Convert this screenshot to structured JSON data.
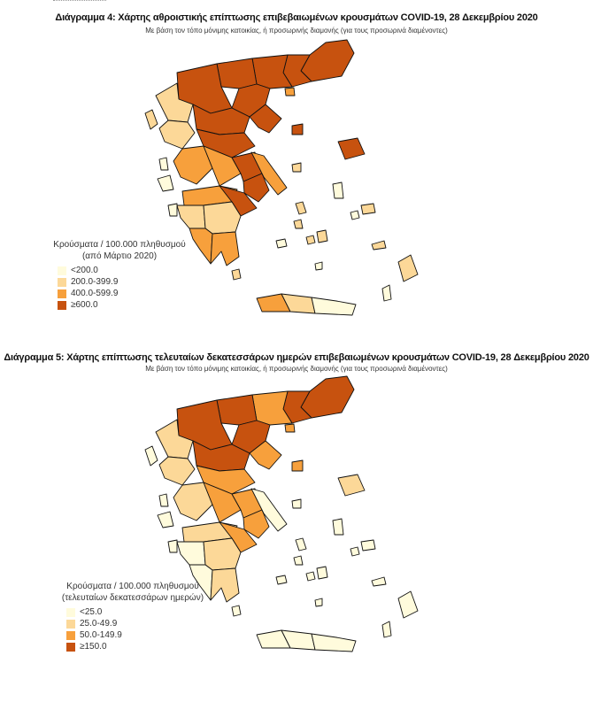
{
  "colors": [
    "#fffbdc",
    "#fcd898",
    "#f7a03c",
    "#c7520f"
  ],
  "map4": {
    "title": "Διάγραμμα 4: Χάρτης αθροιστικής επίπτωσης επιβεβαιωμένων κρουσμάτων COVID-19, 28 Δεκεμβρίου 2020",
    "subtitle": "Με βάση τον τόπο μόνιμης κατοικίας, ή προσωρινής διαμονής (για τους προσωρινά διαμένοντες)",
    "legend_title": "Κρούσματα / 100.000 πληθυσμού",
    "legend_subtitle": "(από Μάρτιο 2020)",
    "classes": [
      "<200.0",
      "200.0-399.9",
      "400.0-599.9",
      "≥600.0"
    ]
  },
  "map5": {
    "title": "Διάγραμμα 5: Χάρτης επίπτωσης τελευταίων δεκατεσσάρων ημερών επιβεβαιωμένων κρουσμάτων COVID-19, 28 Δεκεμβρίου 2020",
    "subtitle": "Με βάση τον τόπο μόνιμης κατοικίας, ή προσωρινής διαμονής (για τους προσωρινά διαμένοντες)",
    "legend_title": "Κρούσματα / 100.000 πληθυσμού",
    "legend_subtitle": "(τελευταίων δεκατεσσάρων ημερών)",
    "classes": [
      "<25.0",
      "25.0-49.9",
      "50.0-149.9",
      "≥150.0"
    ]
  }
}
